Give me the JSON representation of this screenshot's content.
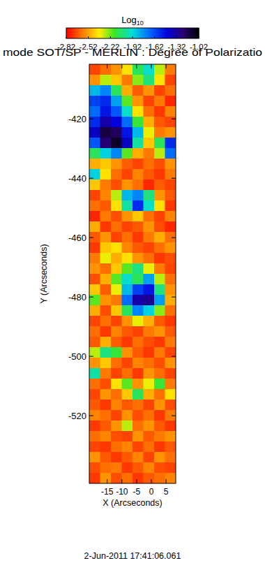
{
  "chart_data": {
    "type": "heatmap",
    "title": "mode SOT/SP - MERLIN : Degree of Polarizatio",
    "xlabel": "X (Arcseconds)",
    "ylabel": "Y (Arcseconds)",
    "annotation": "2-Jun-2011 17:41:06.061",
    "xlim": [
      -21.1,
      8.3
    ],
    "ylim": [
      -542.8,
      -401.6
    ],
    "xticks": [
      -15,
      -10,
      -5,
      0,
      5
    ],
    "yticks": [
      -420,
      -440,
      -460,
      -480,
      -500,
      -520
    ],
    "colorbar": {
      "label": "Log10",
      "range": [
        -2.82,
        -1.02
      ],
      "ticks": [
        -2.82,
        -2.52,
        -2.22,
        -1.92,
        -1.62,
        -1.32,
        -1.02
      ]
    },
    "cells": [
      [
        -2.7,
        -2.62,
        -2.55,
        -2.4,
        -2.1,
        -1.95,
        -2.3,
        -2.6
      ],
      [
        -2.55,
        -2.3,
        -2.45,
        -2.6,
        -2.25,
        -2.05,
        -2.4,
        -2.7
      ],
      [
        -1.85,
        -1.75,
        -2.1,
        -2.5,
        -2.65,
        -2.55,
        -2.7,
        -2.62
      ],
      [
        -1.6,
        -1.55,
        -1.8,
        -2.2,
        -2.55,
        -2.7,
        -2.6,
        -2.75
      ],
      [
        -1.7,
        -1.5,
        -1.65,
        -1.95,
        -2.4,
        -2.62,
        -2.72,
        -2.58
      ],
      [
        -1.55,
        -1.35,
        -1.45,
        -1.7,
        -2.15,
        -2.5,
        -2.66,
        -2.7
      ],
      [
        -1.4,
        -1.15,
        -1.2,
        -1.5,
        -1.85,
        -2.35,
        -2.6,
        -2.55
      ],
      [
        -1.65,
        -1.25,
        -1.1,
        -1.4,
        -2.0,
        -2.45,
        -2.1,
        -1.55
      ],
      [
        -2.1,
        -1.9,
        -1.75,
        -2.2,
        -2.5,
        -2.6,
        -2.3,
        -1.7
      ],
      [
        -2.5,
        -2.45,
        -2.55,
        -2.65,
        -2.7,
        -2.62,
        -2.68,
        -2.55
      ],
      [
        -1.9,
        -2.4,
        -2.62,
        -2.7,
        -2.58,
        -2.66,
        -2.72,
        -2.6
      ],
      [
        -2.45,
        -2.6,
        -2.68,
        -2.55,
        -2.62,
        -2.75,
        -2.65,
        -2.7
      ],
      [
        -2.7,
        -2.58,
        -2.3,
        -1.85,
        -1.75,
        -2.05,
        -2.55,
        -2.66
      ],
      [
        -2.62,
        -2.66,
        -2.4,
        -2.0,
        -1.55,
        -1.95,
        -2.4,
        -2.72
      ],
      [
        -2.75,
        -2.6,
        -2.68,
        -2.55,
        -2.45,
        -2.62,
        -2.7,
        -2.58
      ],
      [
        -2.5,
        -2.72,
        -2.62,
        -2.7,
        -2.66,
        -2.55,
        -2.68,
        -2.75
      ],
      [
        -2.66,
        -2.55,
        -2.7,
        -2.62,
        -2.72,
        -2.6,
        -2.5,
        -2.62
      ],
      [
        -2.72,
        -2.45,
        -2.4,
        -2.58,
        -2.66,
        -2.7,
        -2.62,
        -2.55
      ],
      [
        -2.6,
        -2.35,
        -2.5,
        -2.4,
        -2.55,
        -2.62,
        -2.72,
        -2.68
      ],
      [
        -2.55,
        -2.62,
        -2.45,
        -2.2,
        -2.05,
        -2.35,
        -2.6,
        -2.7
      ],
      [
        -2.68,
        -2.5,
        -2.2,
        -1.95,
        -2.1,
        -1.8,
        -2.3,
        -2.62
      ],
      [
        -2.45,
        -2.65,
        -2.35,
        -1.85,
        -1.6,
        -1.5,
        -2.05,
        -2.55
      ],
      [
        -2.2,
        -2.55,
        -2.6,
        -1.7,
        -1.35,
        -1.3,
        -1.8,
        -2.5
      ],
      [
        -2.5,
        -2.68,
        -2.45,
        -2.1,
        -1.75,
        -1.9,
        -2.25,
        -2.62
      ],
      [
        -2.7,
        -2.62,
        -2.7,
        -2.55,
        -2.35,
        -2.5,
        -2.66,
        -2.72
      ],
      [
        -2.62,
        -2.72,
        -2.58,
        -2.66,
        -2.7,
        -2.6,
        -2.55,
        -2.66
      ],
      [
        -2.66,
        -2.5,
        -2.65,
        -2.72,
        -2.62,
        -2.68,
        -2.72,
        -2.6
      ],
      [
        -2.3,
        -2.05,
        -2.15,
        -2.55,
        -2.66,
        -2.72,
        -2.6,
        -2.7
      ],
      [
        -2.55,
        -2.45,
        -2.62,
        -2.7,
        -2.58,
        -2.62,
        -2.68,
        -2.55
      ],
      [
        -2.0,
        -2.6,
        -2.7,
        -2.62,
        -2.72,
        -2.55,
        -2.62,
        -2.7
      ],
      [
        -2.62,
        -2.68,
        -2.4,
        -2.2,
        -2.55,
        -2.35,
        -2.15,
        -2.6
      ],
      [
        -2.7,
        -2.55,
        -2.62,
        -2.45,
        -2.1,
        -2.5,
        -2.62,
        -2.4
      ],
      [
        -2.66,
        -2.72,
        -2.58,
        -2.66,
        -2.62,
        -2.7,
        -2.55,
        -2.68
      ],
      [
        -2.58,
        -2.62,
        -2.7,
        -2.55,
        -2.68,
        -2.62,
        -2.72,
        -2.6
      ],
      [
        -2.72,
        -2.66,
        -2.55,
        -2.3,
        -2.62,
        -2.55,
        -2.66,
        -2.72
      ],
      [
        -2.62,
        -2.58,
        -2.68,
        -2.7,
        -2.55,
        -2.66,
        -2.6,
        -2.55
      ],
      [
        -2.7,
        -2.72,
        -2.62,
        -2.58,
        -2.7,
        -2.62,
        -2.72,
        -2.66
      ],
      [
        -2.55,
        -2.66,
        -2.72,
        -2.66,
        -2.58,
        -2.7,
        -2.55,
        -2.62
      ],
      [
        -2.68,
        -2.62,
        -2.6,
        -2.72,
        -2.66,
        -2.58,
        -2.68,
        -2.7
      ],
      [
        -2.72,
        -2.55,
        -2.68,
        -2.62,
        -2.72,
        -2.66,
        -2.62,
        -2.58
      ]
    ]
  }
}
